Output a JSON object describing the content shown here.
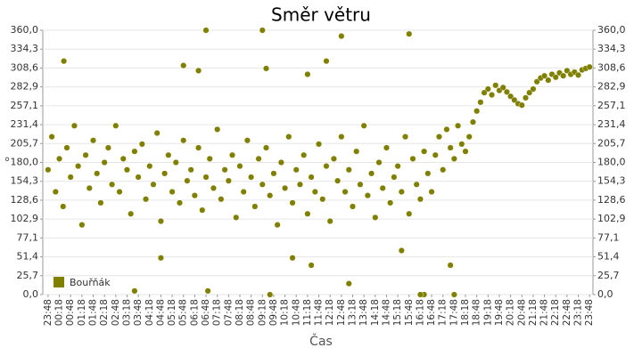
{
  "chart_data": {
    "type": "scatter",
    "title": "Směr větru",
    "x_label": "Čas",
    "y_label": "°",
    "xlim": [
      -14,
      1449
    ],
    "ylim": [
      0,
      360
    ],
    "grid": true,
    "legend": "lower left",
    "yticks": [
      {
        "value": 0,
        "label": "0,0"
      },
      {
        "value": 25.7,
        "label": "25,7"
      },
      {
        "value": 51.4,
        "label": "51,4"
      },
      {
        "value": 77.1,
        "label": "77,1"
      },
      {
        "value": 102.9,
        "label": "102,9"
      },
      {
        "value": 128.6,
        "label": "128,6"
      },
      {
        "value": 154.3,
        "label": "154,3"
      },
      {
        "value": 180,
        "label": "180,0"
      },
      {
        "value": 205.7,
        "label": "205,7"
      },
      {
        "value": 231.4,
        "label": "231,4"
      },
      {
        "value": 257.1,
        "label": "257,1"
      },
      {
        "value": 282.9,
        "label": "282,9"
      },
      {
        "value": 308.6,
        "label": "308,6"
      },
      {
        "value": 334.3,
        "label": "334,3"
      },
      {
        "value": 360,
        "label": "360,0"
      }
    ],
    "xticks": [
      {
        "value": 0,
        "label": "23:48"
      },
      {
        "value": 30,
        "label": "00:18"
      },
      {
        "value": 60,
        "label": "00:48"
      },
      {
        "value": 90,
        "label": "01:18"
      },
      {
        "value": 120,
        "label": "01:48"
      },
      {
        "value": 150,
        "label": "02:18"
      },
      {
        "value": 180,
        "label": "02:48"
      },
      {
        "value": 210,
        "label": "03:18"
      },
      {
        "value": 240,
        "label": "03:48"
      },
      {
        "value": 270,
        "label": "04:18"
      },
      {
        "value": 300,
        "label": "04:48"
      },
      {
        "value": 330,
        "label": "05:18"
      },
      {
        "value": 360,
        "label": "05:48"
      },
      {
        "value": 390,
        "label": "06:18"
      },
      {
        "value": 420,
        "label": "06:48"
      },
      {
        "value": 450,
        "label": "07:18"
      },
      {
        "value": 480,
        "label": "07:48"
      },
      {
        "value": 510,
        "label": "08:18"
      },
      {
        "value": 540,
        "label": "08:48"
      },
      {
        "value": 570,
        "label": "09:18"
      },
      {
        "value": 600,
        "label": "09:48"
      },
      {
        "value": 630,
        "label": "10:18"
      },
      {
        "value": 660,
        "label": "10:48"
      },
      {
        "value": 690,
        "label": "11:18"
      },
      {
        "value": 720,
        "label": "11:48"
      },
      {
        "value": 750,
        "label": "12:18"
      },
      {
        "value": 780,
        "label": "12:48"
      },
      {
        "value": 810,
        "label": "13:18"
      },
      {
        "value": 840,
        "label": "13:48"
      },
      {
        "value": 870,
        "label": "14:18"
      },
      {
        "value": 900,
        "label": "14:48"
      },
      {
        "value": 930,
        "label": "15:18"
      },
      {
        "value": 960,
        "label": "15:48"
      },
      {
        "value": 990,
        "label": "16:18"
      },
      {
        "value": 1020,
        "label": "16:48"
      },
      {
        "value": 1050,
        "label": "17:18"
      },
      {
        "value": 1080,
        "label": "17:48"
      },
      {
        "value": 1110,
        "label": "18:18"
      },
      {
        "value": 1140,
        "label": "18:48"
      },
      {
        "value": 1170,
        "label": "19:18"
      },
      {
        "value": 1200,
        "label": "19:48"
      },
      {
        "value": 1230,
        "label": "20:18"
      },
      {
        "value": 1260,
        "label": "20:48"
      },
      {
        "value": 1290,
        "label": "21:18"
      },
      {
        "value": 1320,
        "label": "21:48"
      },
      {
        "value": 1350,
        "label": "22:18"
      },
      {
        "value": 1380,
        "label": "22:48"
      },
      {
        "value": 1410,
        "label": "23:18"
      },
      {
        "value": 1440,
        "label": "23:48"
      }
    ],
    "series": [
      {
        "name": "Bouřňák",
        "color": "#808000",
        "x": [
          0,
          10,
          20,
          30,
          40,
          50,
          60,
          70,
          80,
          90,
          100,
          110,
          120,
          130,
          140,
          150,
          160,
          170,
          180,
          190,
          200,
          210,
          220,
          230,
          240,
          250,
          260,
          270,
          280,
          290,
          300,
          310,
          320,
          330,
          340,
          350,
          360,
          370,
          380,
          390,
          400,
          410,
          420,
          430,
          440,
          450,
          460,
          470,
          480,
          490,
          500,
          510,
          520,
          530,
          540,
          550,
          560,
          570,
          580,
          590,
          600,
          610,
          620,
          630,
          640,
          650,
          660,
          670,
          680,
          690,
          700,
          710,
          720,
          730,
          740,
          750,
          760,
          770,
          780,
          790,
          800,
          810,
          820,
          830,
          840,
          850,
          860,
          870,
          880,
          890,
          900,
          910,
          920,
          930,
          940,
          950,
          960,
          970,
          980,
          990,
          1000,
          1010,
          1020,
          1030,
          1040,
          1050,
          1060,
          1070,
          1080,
          1090,
          1100,
          1110,
          1120,
          1130,
          1140,
          1150,
          1160,
          1170,
          1180,
          1190,
          1200,
          1210,
          1220,
          1230,
          1240,
          1250,
          1260,
          1270,
          1280,
          1290,
          1300,
          1310,
          1320,
          1330,
          1340,
          1350,
          1360,
          1370,
          1380,
          1390,
          1400,
          1410,
          1420,
          1430,
          1440,
          42,
          360,
          420,
          400,
          570,
          580,
          690,
          740,
          780,
          960,
          940,
          1000,
          990,
          590,
          425,
          230,
          1080,
          1070,
          700,
          300,
          800,
          650
        ],
        "values": [
          170,
          215,
          140,
          185,
          120,
          200,
          160,
          230,
          175,
          95,
          190,
          145,
          210,
          165,
          125,
          180,
          200,
          150,
          230,
          140,
          185,
          170,
          110,
          195,
          160,
          205,
          130,
          175,
          150,
          220,
          100,
          165,
          190,
          140,
          180,
          125,
          210,
          155,
          170,
          135,
          200,
          115,
          160,
          185,
          145,
          225,
          130,
          170,
          155,
          190,
          105,
          175,
          140,
          210,
          160,
          120,
          185,
          150,
          200,
          135,
          165,
          95,
          180,
          145,
          215,
          125,
          170,
          150,
          190,
          110,
          160,
          140,
          205,
          130,
          175,
          100,
          185,
          155,
          215,
          140,
          170,
          120,
          195,
          150,
          230,
          135,
          165,
          105,
          180,
          145,
          200,
          125,
          160,
          175,
          140,
          215,
          110,
          185,
          150,
          130,
          195,
          165,
          140,
          190,
          215,
          170,
          225,
          200,
          185,
          230,
          205,
          195,
          215,
          235,
          250,
          262,
          275,
          280,
          272,
          285,
          278,
          282,
          276,
          270,
          265,
          260,
          258,
          268,
          275,
          280,
          290,
          295,
          298,
          292,
          300,
          296,
          302,
          298,
          305,
          300,
          303,
          299,
          306,
          308,
          310,
          318,
          312,
          360,
          305,
          360,
          308,
          300,
          318,
          352,
          355,
          60,
          0,
          0,
          0,
          5,
          5,
          0,
          40,
          40,
          50,
          15,
          50
        ]
      }
    ]
  }
}
